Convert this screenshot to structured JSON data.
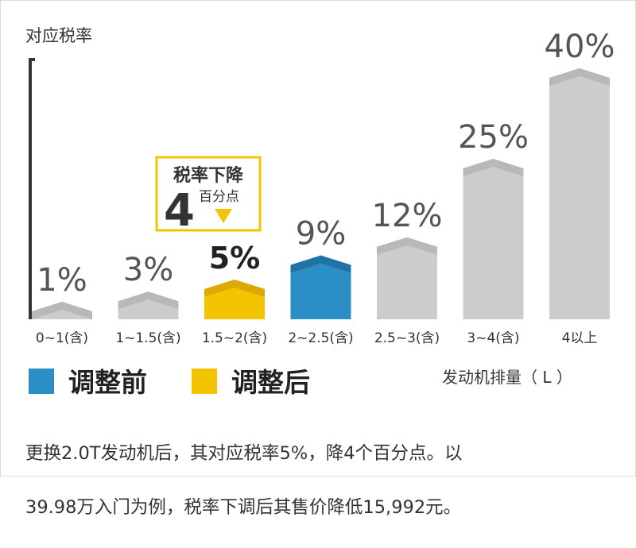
{
  "chart_data": {
    "type": "bar",
    "ylabel": "对应税率",
    "xlabel": "发动机排量（ L ）",
    "categories": [
      "0~1(含)",
      "1~1.5(含)",
      "1.5~2(含)",
      "2~2.5(含)",
      "2.5~3(含)",
      "3~4(含)",
      "4以上"
    ],
    "values": [
      1,
      3,
      5,
      9,
      12,
      25,
      40
    ],
    "value_labels": [
      "1%",
      "3%",
      "5%",
      "9%",
      "12%",
      "25%",
      "40%"
    ],
    "highlight_index": 2,
    "compare_index": 3,
    "ylim": [
      0,
      40
    ],
    "grid": false,
    "legend": [
      {
        "name": "调整前",
        "color": "#2b8fc6"
      },
      {
        "name": "调整后",
        "color": "#f5c400"
      }
    ],
    "colors": {
      "default": "#cccccc",
      "default_cap": "#b8b8b8",
      "before": "#2b8fc6",
      "after": "#f5c400"
    },
    "callout": {
      "title": "税率下降",
      "number": "4",
      "unit": "百分点"
    }
  },
  "caption": {
    "line1": "更换2.0T发动机后，其对应税率5%，降4个百分点。以",
    "line2": "39.98万入门为例，税率下调后其售价降低15,992元。"
  }
}
